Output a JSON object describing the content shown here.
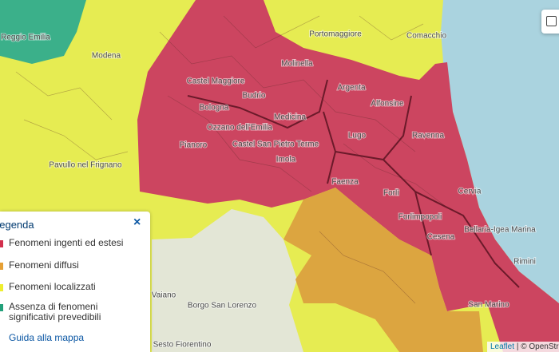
{
  "places": [
    "Reggio Emilia",
    "Modena",
    "Bologna",
    "Castel Maggiore",
    "Molinella",
    "Argenta",
    "Budrio",
    "Medicina",
    "Ozzano dell'Emilia",
    "Castel San Pietro Terme",
    "Imola",
    "Pianoro",
    "Lugo",
    "Alfonsine",
    "Ravenna",
    "Faenza",
    "Forlì",
    "Forlimpopoli",
    "Cesena",
    "Cervia",
    "Bellaria-Igea Marina",
    "Rimini",
    "San Marino",
    "Portomaggiore",
    "Comacchio",
    "Pavullo nel Frignano",
    "Borgo San Lorenzo",
    "Vaiano",
    "Sesto Fiorentino"
  ],
  "legend": {
    "title": "Legenda",
    "close": "×",
    "items": [
      {
        "label": "Fenomeni ingenti ed estesi",
        "color": "#d2304d"
      },
      {
        "label": "Fenomeni diffusi",
        "color": "#e6a035"
      },
      {
        "label": "Fenomeni localizzati",
        "color": "#eeee2e"
      },
      {
        "label": "Assenza di fenomeni significativi prevedibili",
        "color": "#22a07a"
      }
    ],
    "link": "Guida alla mappa"
  },
  "attribution": [
    "Leaflet",
    "|",
    "© OpenStreetMap"
  ]
}
